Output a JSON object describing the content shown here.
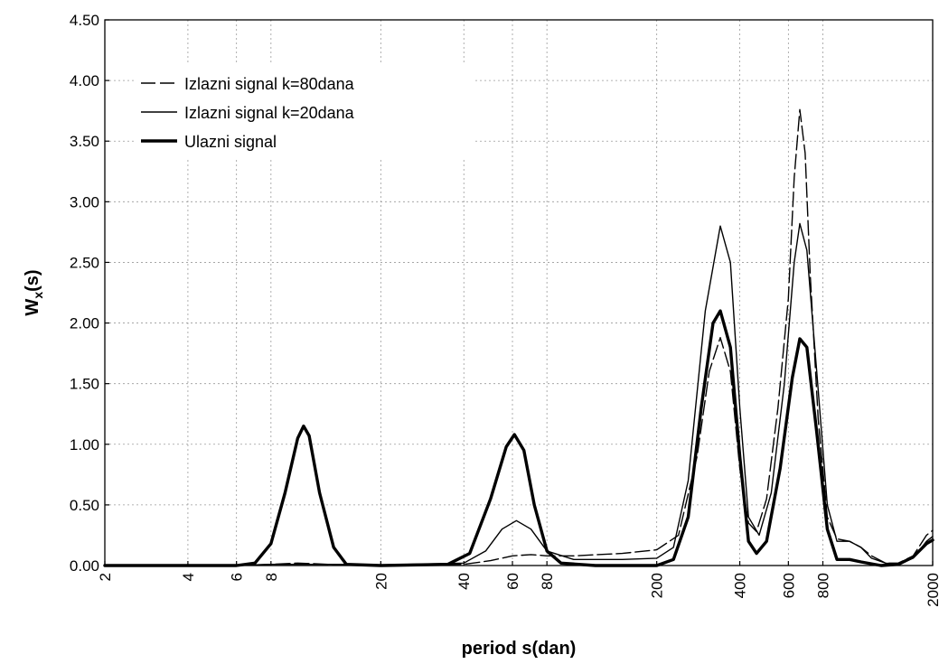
{
  "chart_data": {
    "type": "line",
    "xlabel": "period s(dan)",
    "ylabel": {
      "main": "W",
      "sub": "x",
      "rest": "(s)"
    },
    "xscale": "log",
    "xlim": [
      2,
      2000
    ],
    "ylim": [
      0,
      4.5
    ],
    "grid": true,
    "legend_position": "top-left",
    "x_ticks": [
      {
        "value": 2,
        "label": "2"
      },
      {
        "value": 4,
        "label": "4"
      },
      {
        "value": 6,
        "label": "6"
      },
      {
        "value": 8,
        "label": "8"
      },
      {
        "value": 20,
        "label": "20"
      },
      {
        "value": 40,
        "label": "40"
      },
      {
        "value": 60,
        "label": "60"
      },
      {
        "value": 80,
        "label": "80"
      },
      {
        "value": 200,
        "label": "200"
      },
      {
        "value": 400,
        "label": "400"
      },
      {
        "value": 600,
        "label": "600"
      },
      {
        "value": 800,
        "label": "800"
      },
      {
        "value": 2000,
        "label": "2000"
      }
    ],
    "y_ticks": [
      {
        "value": 0,
        "label": "0.00"
      },
      {
        "value": 0.5,
        "label": "0.50"
      },
      {
        "value": 1.0,
        "label": "1.00"
      },
      {
        "value": 1.5,
        "label": "1.50"
      },
      {
        "value": 2.0,
        "label": "2.00"
      },
      {
        "value": 2.5,
        "label": "2.50"
      },
      {
        "value": 3.0,
        "label": "3.00"
      },
      {
        "value": 3.5,
        "label": "3.50"
      },
      {
        "value": 4.0,
        "label": "4.00"
      },
      {
        "value": 4.5,
        "label": "4.50"
      }
    ],
    "series": [
      {
        "name": "Izlazni signal k=80dana",
        "style": "dashed",
        "color": "#000000",
        "points": [
          [
            2,
            0
          ],
          [
            6,
            0
          ],
          [
            8,
            0.01
          ],
          [
            10,
            0.02
          ],
          [
            13,
            0.01
          ],
          [
            20,
            0.005
          ],
          [
            40,
            0.01
          ],
          [
            50,
            0.04
          ],
          [
            60,
            0.08
          ],
          [
            70,
            0.09
          ],
          [
            80,
            0.08
          ],
          [
            100,
            0.08
          ],
          [
            150,
            0.1
          ],
          [
            200,
            0.13
          ],
          [
            240,
            0.25
          ],
          [
            280,
            0.9
          ],
          [
            310,
            1.6
          ],
          [
            340,
            1.88
          ],
          [
            370,
            1.6
          ],
          [
            400,
            0.8
          ],
          [
            430,
            0.35
          ],
          [
            460,
            0.28
          ],
          [
            500,
            0.55
          ],
          [
            550,
            1.3
          ],
          [
            600,
            2.2
          ],
          [
            630,
            3.2
          ],
          [
            660,
            3.76
          ],
          [
            690,
            3.4
          ],
          [
            720,
            2.4
          ],
          [
            770,
            1.2
          ],
          [
            830,
            0.4
          ],
          [
            900,
            0.22
          ],
          [
            1000,
            0.2
          ],
          [
            1100,
            0.15
          ],
          [
            1200,
            0.08
          ],
          [
            1350,
            0.02
          ],
          [
            1500,
            0.02
          ],
          [
            1700,
            0.08
          ],
          [
            1900,
            0.25
          ],
          [
            2000,
            0.29
          ]
        ]
      },
      {
        "name": "Izlazni signal k=20dana",
        "style": "solid",
        "color": "#000000",
        "points": [
          [
            2,
            0
          ],
          [
            6,
            0
          ],
          [
            8,
            0.01
          ],
          [
            10,
            0.01
          ],
          [
            13,
            0.01
          ],
          [
            20,
            0.005
          ],
          [
            40,
            0.02
          ],
          [
            48,
            0.12
          ],
          [
            55,
            0.3
          ],
          [
            62,
            0.37
          ],
          [
            70,
            0.3
          ],
          [
            80,
            0.12
          ],
          [
            100,
            0.05
          ],
          [
            150,
            0.05
          ],
          [
            200,
            0.06
          ],
          [
            230,
            0.15
          ],
          [
            260,
            0.7
          ],
          [
            300,
            2.1
          ],
          [
            340,
            2.8
          ],
          [
            370,
            2.5
          ],
          [
            400,
            1.3
          ],
          [
            430,
            0.4
          ],
          [
            470,
            0.25
          ],
          [
            520,
            0.6
          ],
          [
            580,
            1.5
          ],
          [
            630,
            2.5
          ],
          [
            660,
            2.82
          ],
          [
            700,
            2.6
          ],
          [
            760,
            1.6
          ],
          [
            830,
            0.5
          ],
          [
            900,
            0.2
          ],
          [
            1000,
            0.2
          ],
          [
            1100,
            0.15
          ],
          [
            1200,
            0.06
          ],
          [
            1350,
            0.02
          ],
          [
            1500,
            0.01
          ],
          [
            1700,
            0.06
          ],
          [
            1900,
            0.2
          ],
          [
            2000,
            0.24
          ]
        ]
      },
      {
        "name": "Ulazni signal",
        "style": "thick",
        "color": "#000000",
        "points": [
          [
            2,
            0
          ],
          [
            6,
            0
          ],
          [
            7,
            0.02
          ],
          [
            8,
            0.18
          ],
          [
            9,
            0.6
          ],
          [
            10,
            1.05
          ],
          [
            10.5,
            1.15
          ],
          [
            11,
            1.07
          ],
          [
            12,
            0.6
          ],
          [
            13.5,
            0.15
          ],
          [
            15,
            0.01
          ],
          [
            20,
            0
          ],
          [
            35,
            0.01
          ],
          [
            42,
            0.1
          ],
          [
            50,
            0.55
          ],
          [
            57,
            0.98
          ],
          [
            61,
            1.08
          ],
          [
            66,
            0.95
          ],
          [
            72,
            0.5
          ],
          [
            80,
            0.12
          ],
          [
            90,
            0.02
          ],
          [
            120,
            0
          ],
          [
            200,
            0
          ],
          [
            230,
            0.05
          ],
          [
            260,
            0.4
          ],
          [
            290,
            1.3
          ],
          [
            320,
            2.0
          ],
          [
            340,
            2.1
          ],
          [
            370,
            1.8
          ],
          [
            400,
            0.9
          ],
          [
            430,
            0.2
          ],
          [
            460,
            0.1
          ],
          [
            500,
            0.2
          ],
          [
            560,
            0.8
          ],
          [
            620,
            1.55
          ],
          [
            660,
            1.87
          ],
          [
            700,
            1.8
          ],
          [
            760,
            1.1
          ],
          [
            830,
            0.3
          ],
          [
            900,
            0.05
          ],
          [
            1000,
            0.05
          ],
          [
            1100,
            0.03
          ],
          [
            1300,
            0
          ],
          [
            1500,
            0.01
          ],
          [
            1700,
            0.07
          ],
          [
            1900,
            0.18
          ],
          [
            2000,
            0.21
          ]
        ]
      }
    ]
  }
}
